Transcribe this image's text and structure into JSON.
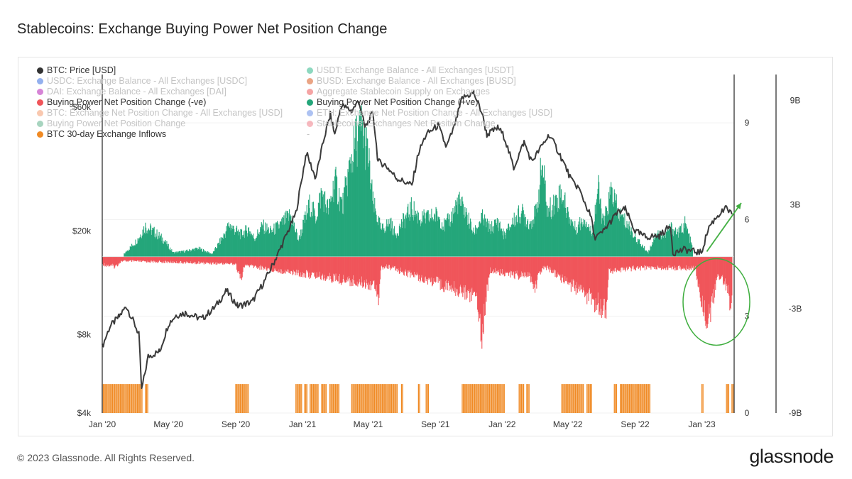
{
  "title": "Stablecoins: Exchange Buying Power Net Position Change",
  "footer": "© 2023 Glassnode. All Rights Reserved.",
  "brand": "glassnode",
  "watermark": "glassnode",
  "legend": [
    {
      "label": "BTC: Price [USD]",
      "color": "#333333",
      "active": true
    },
    {
      "label": "USDT: Exchange Balance - All Exchanges [USDT]",
      "color": "#2fb88a",
      "active": false
    },
    {
      "label": "USDC: Exchange Balance - All Exchanges [USDC]",
      "color": "#3b6fe0",
      "active": false
    },
    {
      "label": "BUSD: Exchange Balance - All Exchanges [BUSD]",
      "color": "#d85a1f",
      "active": false
    },
    {
      "label": "DAI: Exchange Balance - All Exchanges [DAI]",
      "color": "#b41fb4",
      "active": false
    },
    {
      "label": "Aggregate Stablecoin Supply on Exchanges",
      "color": "#ec5a5a",
      "active": false
    },
    {
      "label": "Buying Power Net Position Change (-ve)",
      "color": "#f0555a",
      "active": true
    },
    {
      "label": "Buying Power Net Position Change (+ve)",
      "color": "#24a67a",
      "active": true
    },
    {
      "label": "BTC: Exchange Net Position Change - All Exchanges [USD]",
      "color": "#f49a6e",
      "active": false
    },
    {
      "label": "ETH: Exchange Net Position Change - All Exchanges [USD]",
      "color": "#6a8fe8",
      "active": false
    },
    {
      "label": "Buying Power Net Position Change",
      "color": "#5fb08a",
      "active": false
    },
    {
      "label": "Stablecoins: Exchanges Net Position Change",
      "color": "#f07f8a",
      "active": false
    },
    {
      "label": "BTC 30-day Exchange Inflows",
      "color": "#f08a24",
      "active": true
    },
    {
      "label": "-",
      "color": "",
      "active": false
    }
  ],
  "chart_data": {
    "type": "line",
    "title": "Stablecoins: Exchange Buying Power Net Position Change",
    "x_ticks": [
      "Jan '20",
      "May '20",
      "Sep '20",
      "Jan '21",
      "May '21",
      "Sep '21",
      "Jan '22",
      "May '22",
      "Sep '22",
      "Jan '23"
    ],
    "x_range": [
      "2020-01-01",
      "2023-03-01"
    ],
    "axis_price": {
      "label": "BTC: Price [USD]",
      "scale": "log",
      "range": [
        4000,
        80000
      ],
      "ticks": [
        "$4k",
        "$8k",
        "$20k",
        "$60k"
      ],
      "tick_values": [
        4000,
        8000,
        20000,
        60000
      ]
    },
    "axis_count": {
      "label": "BTC 30-day Exchange Inflows",
      "range": [
        0,
        10.5
      ],
      "ticks": [
        "0",
        "3",
        "6",
        "9"
      ],
      "tick_values": [
        0,
        3,
        6,
        9
      ]
    },
    "axis_usd": {
      "label": "Buying Power Net Position Change [USD]",
      "range": [
        -9,
        10.5
      ],
      "unit": "B",
      "ticks": [
        "-9B",
        "-3B",
        "3B",
        "9B"
      ],
      "tick_values": [
        -9,
        -3,
        3,
        9
      ]
    },
    "series": [
      {
        "name": "BTC: Price [USD]",
        "axis": "price",
        "color": "#3a3a3a",
        "points": [
          [
            "2020-01-01",
            7200
          ],
          [
            "2020-01-15",
            8600
          ],
          [
            "2020-02-01",
            9400
          ],
          [
            "2020-02-14",
            10300
          ],
          [
            "2020-03-01",
            8700
          ],
          [
            "2020-03-08",
            8000
          ],
          [
            "2020-03-13",
            4900
          ],
          [
            "2020-03-25",
            6600
          ],
          [
            "2020-04-15",
            6900
          ],
          [
            "2020-05-01",
            8800
          ],
          [
            "2020-05-15",
            9500
          ],
          [
            "2020-06-01",
            9700
          ],
          [
            "2020-07-01",
            9200
          ],
          [
            "2020-07-25",
            10200
          ],
          [
            "2020-08-15",
            11800
          ],
          [
            "2020-09-05",
            10300
          ],
          [
            "2020-10-01",
            10700
          ],
          [
            "2020-10-25",
            13000
          ],
          [
            "2020-11-15",
            16000
          ],
          [
            "2020-12-01",
            19000
          ],
          [
            "2020-12-20",
            23500
          ],
          [
            "2021-01-08",
            40000
          ],
          [
            "2021-01-25",
            32000
          ],
          [
            "2021-02-10",
            46000
          ],
          [
            "2021-02-21",
            56000
          ],
          [
            "2021-03-01",
            47000
          ],
          [
            "2021-03-13",
            61000
          ],
          [
            "2021-04-01",
            58000
          ],
          [
            "2021-04-14",
            63500
          ],
          [
            "2021-04-25",
            50000
          ],
          [
            "2021-05-10",
            57000
          ],
          [
            "2021-05-19",
            37000
          ],
          [
            "2021-06-01",
            36000
          ],
          [
            "2021-06-22",
            32000
          ],
          [
            "2021-07-20",
            30000
          ],
          [
            "2021-08-01",
            40000
          ],
          [
            "2021-08-15",
            47000
          ],
          [
            "2021-09-06",
            51000
          ],
          [
            "2021-09-21",
            42000
          ],
          [
            "2021-10-05",
            50000
          ],
          [
            "2021-10-20",
            65000
          ],
          [
            "2021-11-10",
            68000
          ],
          [
            "2021-11-25",
            57000
          ],
          [
            "2021-12-04",
            47000
          ],
          [
            "2021-12-25",
            50000
          ],
          [
            "2022-01-05",
            46000
          ],
          [
            "2022-01-22",
            35000
          ],
          [
            "2022-02-10",
            44000
          ],
          [
            "2022-02-24",
            37000
          ],
          [
            "2022-03-28",
            47000
          ],
          [
            "2022-04-15",
            40000
          ],
          [
            "2022-05-09",
            31000
          ],
          [
            "2022-05-20",
            29500
          ],
          [
            "2022-06-13",
            22500
          ],
          [
            "2022-06-18",
            19000
          ],
          [
            "2022-07-01",
            19500
          ],
          [
            "2022-07-30",
            23500
          ],
          [
            "2022-08-14",
            24300
          ],
          [
            "2022-09-01",
            20000
          ],
          [
            "2022-09-20",
            19000
          ],
          [
            "2022-10-15",
            19200
          ],
          [
            "2022-11-05",
            21000
          ],
          [
            "2022-11-09",
            16500
          ],
          [
            "2022-12-01",
            17000
          ],
          [
            "2022-12-31",
            16500
          ],
          [
            "2023-01-14",
            20800
          ],
          [
            "2023-01-30",
            23000
          ],
          [
            "2023-02-15",
            24500
          ],
          [
            "2023-02-25",
            23200
          ]
        ]
      },
      {
        "name": "Buying Power Net Position Change (+ve)",
        "axis": "usd",
        "color": "#24a67a",
        "peaks": [
          [
            "2020-02-10",
            0.2
          ],
          [
            "2020-03-05",
            1.2
          ],
          [
            "2020-03-20",
            2.2
          ],
          [
            "2020-04-01",
            1.9
          ],
          [
            "2020-04-20",
            1.3
          ],
          [
            "2020-05-10",
            0.3
          ],
          [
            "2020-06-01",
            0.4
          ],
          [
            "2020-06-25",
            0.6
          ],
          [
            "2020-07-20",
            0.2
          ],
          [
            "2020-08-10",
            1.5
          ],
          [
            "2020-08-20",
            2.3
          ],
          [
            "2020-09-10",
            1.6
          ],
          [
            "2020-09-25",
            2.0
          ],
          [
            "2020-10-05",
            1.3
          ],
          [
            "2020-10-20",
            2.2
          ],
          [
            "2020-11-05",
            1.8
          ],
          [
            "2020-11-25",
            2.4
          ],
          [
            "2020-12-10",
            3.0
          ],
          [
            "2020-12-25",
            1.2
          ],
          [
            "2021-01-05",
            2.6
          ],
          [
            "2021-01-15",
            3.8
          ],
          [
            "2021-01-25",
            2.8
          ],
          [
            "2021-02-05",
            4.6
          ],
          [
            "2021-02-18",
            3.3
          ],
          [
            "2021-03-01",
            5.5
          ],
          [
            "2021-03-15",
            3.6
          ],
          [
            "2021-03-30",
            6.8
          ],
          [
            "2021-04-10",
            8.5
          ],
          [
            "2021-04-20",
            9.3
          ],
          [
            "2021-05-01",
            7.2
          ],
          [
            "2021-05-10",
            3.8
          ],
          [
            "2021-05-25",
            1.9
          ],
          [
            "2021-06-10",
            2.5
          ],
          [
            "2021-06-20",
            1.6
          ],
          [
            "2021-07-05",
            2.6
          ],
          [
            "2021-07-20",
            3.5
          ],
          [
            "2021-08-05",
            2.7
          ],
          [
            "2021-08-20",
            2.8
          ],
          [
            "2021-09-05",
            3.0
          ],
          [
            "2021-09-18",
            2.2
          ],
          [
            "2021-10-01",
            2.9
          ],
          [
            "2021-10-12",
            4.0
          ],
          [
            "2021-10-25",
            3.3
          ],
          [
            "2021-11-10",
            1.7
          ],
          [
            "2021-11-25",
            2.8
          ],
          [
            "2021-12-10",
            2.0
          ],
          [
            "2021-12-25",
            2.5
          ],
          [
            "2022-01-05",
            1.5
          ],
          [
            "2022-01-20",
            2.5
          ],
          [
            "2022-02-05",
            3.2
          ],
          [
            "2022-02-20",
            2.4
          ],
          [
            "2022-03-05",
            3.2
          ],
          [
            "2022-03-15",
            6.8
          ],
          [
            "2022-03-25",
            3.2
          ],
          [
            "2022-04-05",
            3.8
          ],
          [
            "2022-04-20",
            4.6
          ],
          [
            "2022-05-01",
            3.1
          ],
          [
            "2022-05-15",
            2.0
          ],
          [
            "2022-06-01",
            2.8
          ],
          [
            "2022-06-15",
            1.6
          ],
          [
            "2022-06-25",
            5.0
          ],
          [
            "2022-07-05",
            2.3
          ],
          [
            "2022-07-20",
            4.8
          ],
          [
            "2022-08-01",
            3.2
          ],
          [
            "2022-08-20",
            2.2
          ],
          [
            "2022-09-05",
            1.2
          ],
          [
            "2022-09-25",
            0.3
          ],
          [
            "2022-10-10",
            1.8
          ],
          [
            "2022-10-25",
            1.5
          ],
          [
            "2022-11-05",
            2.1
          ],
          [
            "2022-11-20",
            1.7
          ],
          [
            "2022-12-01",
            2.4
          ],
          [
            "2022-12-10",
            1.3
          ],
          [
            "2022-12-15",
            0.6
          ]
        ]
      },
      {
        "name": "Buying Power Net Position Change (-ve)",
        "axis": "usd",
        "color": "#f0555a",
        "peaks": [
          [
            "2020-01-01",
            -0.5
          ],
          [
            "2020-01-10",
            -0.6
          ],
          [
            "2020-01-25",
            -0.7
          ],
          [
            "2020-02-05",
            -0.3
          ],
          [
            "2020-09-01",
            -0.5
          ],
          [
            "2020-09-10",
            -1.6
          ],
          [
            "2020-09-18",
            -0.6
          ],
          [
            "2021-05-15",
            -2.0
          ],
          [
            "2021-05-20",
            -2.9
          ],
          [
            "2021-05-25",
            -0.8
          ],
          [
            "2021-06-05",
            -0.7
          ],
          [
            "2021-11-15",
            -2.8
          ],
          [
            "2021-11-20",
            -4.0
          ],
          [
            "2021-11-25",
            -5.8
          ],
          [
            "2021-12-02",
            -3.0
          ],
          [
            "2021-12-10",
            -1.0
          ],
          [
            "2022-02-25",
            -1.5
          ],
          [
            "2022-03-01",
            -2.7
          ],
          [
            "2022-03-08",
            -1.2
          ],
          [
            "2022-03-20",
            -0.7
          ],
          [
            "2022-07-10",
            -3.8
          ],
          [
            "2022-07-15",
            -1.0
          ],
          [
            "2022-09-05",
            -0.8
          ],
          [
            "2022-12-20",
            -0.8
          ],
          [
            "2022-12-28",
            -2.5
          ],
          [
            "2023-01-05",
            -3.8
          ],
          [
            "2023-01-12",
            -4.4
          ],
          [
            "2023-01-20",
            -3.5
          ],
          [
            "2023-01-28",
            -1.6
          ],
          [
            "2023-02-05",
            -1.4
          ],
          [
            "2023-02-12",
            -1.8
          ],
          [
            "2023-02-20",
            -3.0
          ],
          [
            "2023-02-25",
            -3.6
          ]
        ]
      },
      {
        "name": "BTC 30-day Exchange Inflows",
        "axis": "count",
        "color": "#f08a24",
        "level": 0.9,
        "ranges": [
          [
            "2020-01-01",
            "2020-03-15"
          ],
          [
            "2020-03-20",
            "2020-03-25"
          ],
          [
            "2020-09-01",
            "2020-09-25"
          ],
          [
            "2020-12-20",
            "2020-12-31"
          ],
          [
            "2021-01-05",
            "2021-01-10"
          ],
          [
            "2021-01-15",
            "2021-01-30"
          ],
          [
            "2021-02-05",
            "2021-02-15"
          ],
          [
            "2021-02-20",
            "2021-03-10"
          ],
          [
            "2021-04-01",
            "2021-06-25"
          ],
          [
            "2021-07-01",
            "2021-07-05"
          ],
          [
            "2021-08-01",
            "2021-08-05"
          ],
          [
            "2021-08-15",
            "2021-08-20"
          ],
          [
            "2021-10-20",
            "2022-01-05"
          ],
          [
            "2022-02-01",
            "2022-02-10"
          ],
          [
            "2022-02-15",
            "2022-02-20"
          ],
          [
            "2022-04-20",
            "2022-05-30"
          ],
          [
            "2022-06-05",
            "2022-06-15"
          ],
          [
            "2022-07-25",
            "2022-07-31"
          ],
          [
            "2022-08-05",
            "2022-09-30"
          ],
          [
            "2023-01-01",
            "2023-01-05"
          ],
          [
            "2023-02-15",
            "2023-02-20"
          ],
          [
            "2023-02-25",
            "2023-02-28"
          ]
        ]
      }
    ],
    "annotations": [
      {
        "type": "ellipse",
        "color": "#3fae3f",
        "center": [
          "2023-01-25",
          -2.6
        ]
      },
      {
        "type": "arrow",
        "color": "#3fae3f",
        "from": [
          "2023-01-10",
          0.3
        ],
        "to": [
          "2023-03-01",
          3.1
        ]
      }
    ]
  }
}
